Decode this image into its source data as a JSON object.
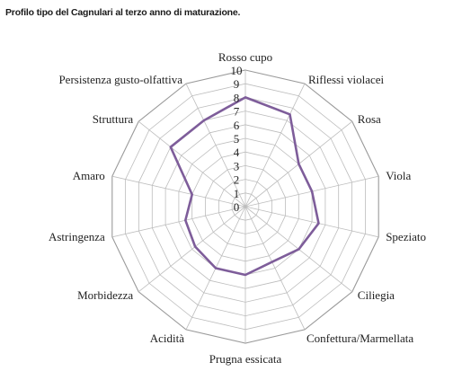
{
  "chart_data": {
    "type": "radar",
    "title": "Profilo tipo del Cagnulari al terzo anno di maturazione.",
    "axes": [
      "Rosso cupo",
      "Riflessi violacei",
      "Rosa",
      "Viola",
      "Speziato",
      "Ciliegia",
      "Confettura/Marmellata",
      "Prugna essicata",
      "Acidità",
      "Morbidezza",
      "Astringenza",
      "Amaro",
      "Struttura",
      "Persistenza gusto-olfattiva"
    ],
    "ticks": [
      "0",
      "1",
      "2",
      "3",
      "4",
      "5",
      "6",
      "7",
      "8",
      "9",
      "10"
    ],
    "range": [
      0,
      10
    ],
    "series": [
      {
        "values": [
          8,
          7.5,
          5,
          5,
          5.5,
          5,
          4.5,
          5,
          5,
          4.7,
          4.5,
          4,
          7,
          7
        ],
        "color": "#7e5d9a"
      }
    ],
    "grid": true
  }
}
